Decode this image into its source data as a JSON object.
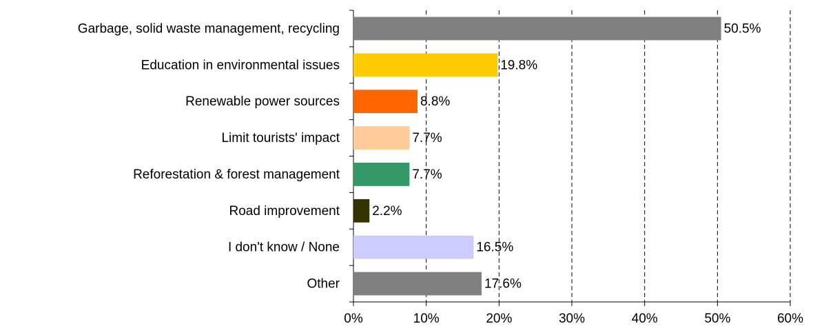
{
  "chart_data": {
    "type": "hbar",
    "categories": [
      "Garbage, solid waste management, recycling",
      "Education in environmental issues",
      "Renewable power sources",
      "Limit tourists' impact",
      "Reforestation & forest management",
      "Road improvement",
      "I don't know / None",
      "Other"
    ],
    "values": [
      50.5,
      19.8,
      8.8,
      7.7,
      7.7,
      2.2,
      16.5,
      17.6
    ],
    "value_labels": [
      "50.5%",
      "19.8%",
      "8.8%",
      "7.7%",
      "7.7%",
      "2.2%",
      "16.5%",
      "17.6%"
    ],
    "colors": [
      "#808080",
      "#ffcc00",
      "#ff6600",
      "#ffcc99",
      "#339966",
      "#333300",
      "#ccccff",
      "#808080"
    ],
    "xlim": [
      0,
      60
    ],
    "xticks": [
      {
        "value": 0,
        "label": "0%"
      },
      {
        "value": 10,
        "label": "10%"
      },
      {
        "value": 20,
        "label": "20%"
      },
      {
        "value": 30,
        "label": "30%"
      },
      {
        "value": 40,
        "label": "40%"
      },
      {
        "value": 50,
        "label": "50%"
      },
      {
        "value": 60,
        "label": "60%"
      }
    ],
    "grid": true
  }
}
